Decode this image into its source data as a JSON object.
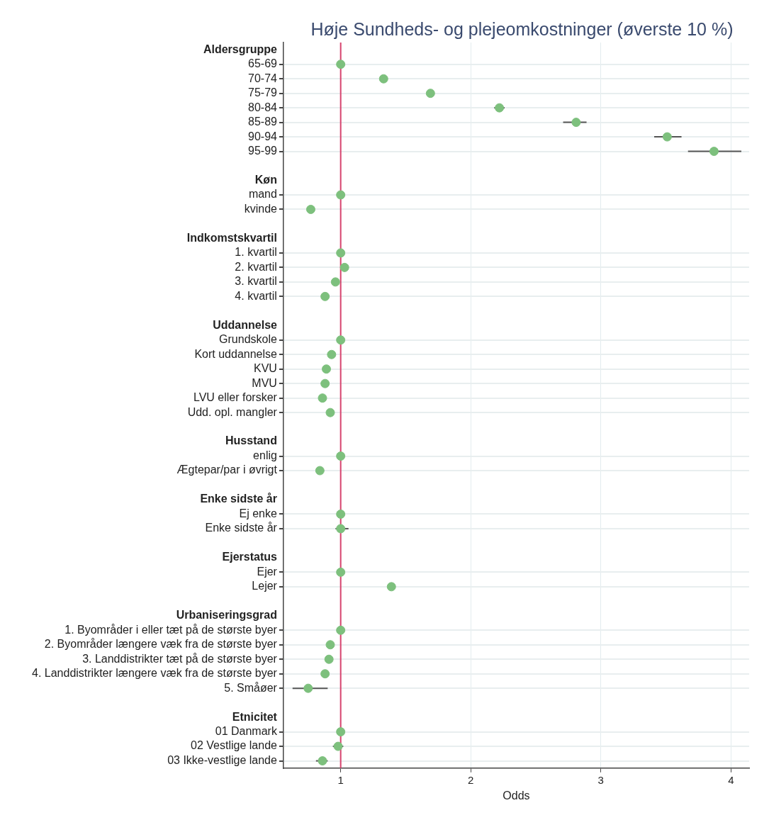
{
  "chart_data": {
    "type": "scatter",
    "orientation": "horizontal",
    "title": "Høje Sundheds- og plejeomkostninger (øverste 10 %)",
    "xlabel": "Odds",
    "categories": [
      "Aldersgruppe",
      "65-69",
      "70-74",
      "75-79",
      "80-84",
      "85-89",
      "90-94",
      "95-99",
      null,
      "Køn",
      "mand",
      "kvinde",
      null,
      "Indkomstskvartil",
      "1. kvartil",
      "2. kvartil",
      "3. kvartil",
      "4. kvartil",
      null,
      "Uddannelse",
      "Grundskole",
      "Kort uddannelse",
      "KVU",
      "MVU",
      "LVU eller forsker",
      "Udd. opl. mangler",
      null,
      "Husstand",
      "enlig",
      "Ægtepar/par i øvrigt",
      null,
      "Enke sidste år",
      "Ej enke",
      "Enke sidste år",
      null,
      "Ejerstatus",
      "Ejer",
      "Lejer",
      null,
      "Urbaniseringsgrad",
      "1. Byområder i eller tæt på de største byer",
      "2. Byområder længere væk fra de største byer",
      "3. Landdistrikter tæt på de største byer",
      "4. Landdistrikter længere væk fra de største byer",
      "5. Småøer",
      null,
      "Etnicitet",
      "01 Danmark",
      "02 Vestlige lande",
      "03 Ikke-vestlige lande"
    ],
    "series": [
      {
        "color": "#7dc07d",
        "values": [
          null,
          1,
          1.33,
          1.69,
          2.22,
          2.81,
          3.51,
          3.87,
          null,
          null,
          1,
          0.77,
          null,
          null,
          1,
          1.03,
          0.96,
          0.88,
          null,
          null,
          1,
          0.93,
          0.89,
          0.88,
          0.86,
          0.92,
          null,
          null,
          1,
          0.84,
          null,
          null,
          1,
          1.0,
          null,
          null,
          1,
          1.39,
          null,
          null,
          1,
          0.92,
          0.91,
          0.88,
          0.75,
          null,
          null,
          1,
          0.98,
          0.86
        ],
        "errors": [
          null,
          null,
          null,
          null,
          [
            2.18,
            2.26
          ],
          [
            2.71,
            2.89
          ],
          [
            3.41,
            3.62
          ],
          [
            3.67,
            4.08
          ],
          null,
          null,
          null,
          null,
          null,
          null,
          null,
          null,
          null,
          null,
          null,
          null,
          null,
          null,
          null,
          null,
          null,
          null,
          null,
          null,
          null,
          null,
          null,
          null,
          null,
          [
            0.96,
            1.06
          ],
          null,
          null,
          null,
          null,
          null,
          null,
          null,
          null,
          null,
          null,
          [
            0.63,
            0.9
          ],
          null,
          null,
          null,
          [
            0.94,
            1.02
          ],
          [
            0.81,
            0.9
          ]
        ]
      }
    ],
    "xlim": [
      0.56,
      4.14
    ],
    "xticks": [
      1,
      2,
      3,
      4
    ],
    "grid": true,
    "marker": "circle",
    "ref_lines": [
      {
        "axis": "x",
        "value": 1,
        "color": "#d6436e"
      }
    ]
  }
}
